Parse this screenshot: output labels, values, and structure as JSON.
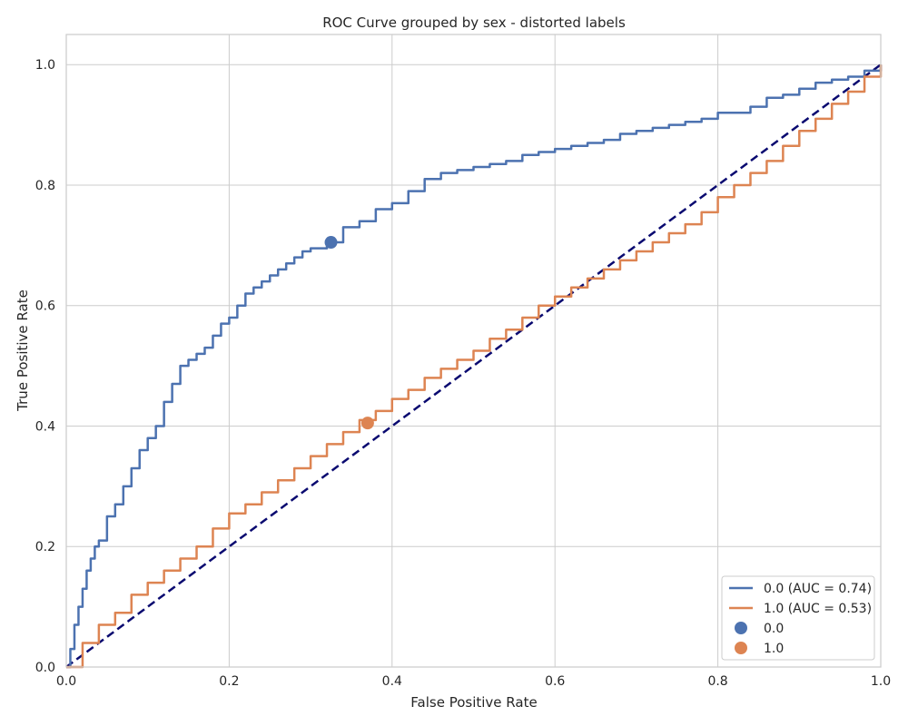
{
  "chart_data": {
    "type": "line",
    "title": "ROC Curve grouped by sex - distorted labels",
    "xlabel": "False Positive Rate",
    "ylabel": "True Positive Rate",
    "xlim": [
      0.0,
      1.0
    ],
    "ylim": [
      0.0,
      1.05
    ],
    "x_ticks": [
      0.0,
      0.2,
      0.4,
      0.6,
      0.8,
      1.0
    ],
    "y_ticks": [
      0.0,
      0.2,
      0.4,
      0.6,
      0.8,
      1.0
    ],
    "x_tick_labels": [
      "0.0",
      "0.2",
      "0.4",
      "0.6",
      "0.8",
      "1.0"
    ],
    "y_tick_labels": [
      "0.0",
      "0.2",
      "0.4",
      "0.6",
      "0.8",
      "1.0"
    ],
    "grid": true,
    "legend_position": "bottom-right",
    "series": [
      {
        "name": "0.0 (AUC = 0.74)",
        "color": "#4c72b0",
        "x": [
          0.0,
          0.005,
          0.01,
          0.015,
          0.02,
          0.025,
          0.03,
          0.035,
          0.04,
          0.05,
          0.06,
          0.07,
          0.08,
          0.09,
          0.1,
          0.11,
          0.12,
          0.13,
          0.14,
          0.15,
          0.16,
          0.17,
          0.18,
          0.19,
          0.2,
          0.21,
          0.22,
          0.23,
          0.24,
          0.25,
          0.26,
          0.27,
          0.28,
          0.29,
          0.3,
          0.32,
          0.34,
          0.36,
          0.38,
          0.4,
          0.42,
          0.44,
          0.46,
          0.48,
          0.5,
          0.52,
          0.54,
          0.56,
          0.58,
          0.6,
          0.62,
          0.64,
          0.66,
          0.68,
          0.7,
          0.72,
          0.74,
          0.76,
          0.78,
          0.8,
          0.82,
          0.84,
          0.86,
          0.88,
          0.9,
          0.92,
          0.94,
          0.96,
          0.98,
          1.0
        ],
        "y": [
          0.0,
          0.03,
          0.07,
          0.1,
          0.13,
          0.16,
          0.18,
          0.2,
          0.21,
          0.25,
          0.27,
          0.3,
          0.33,
          0.36,
          0.38,
          0.4,
          0.44,
          0.47,
          0.5,
          0.51,
          0.52,
          0.53,
          0.55,
          0.57,
          0.58,
          0.6,
          0.62,
          0.63,
          0.64,
          0.65,
          0.66,
          0.67,
          0.68,
          0.69,
          0.695,
          0.705,
          0.73,
          0.74,
          0.76,
          0.77,
          0.79,
          0.81,
          0.82,
          0.825,
          0.83,
          0.835,
          0.84,
          0.85,
          0.855,
          0.86,
          0.865,
          0.87,
          0.875,
          0.885,
          0.89,
          0.895,
          0.9,
          0.905,
          0.91,
          0.92,
          0.92,
          0.93,
          0.945,
          0.95,
          0.96,
          0.97,
          0.975,
          0.98,
          0.99,
          1.0
        ]
      },
      {
        "name": "1.0 (AUC = 0.53)",
        "color": "#dd8452",
        "x": [
          0.0,
          0.02,
          0.04,
          0.06,
          0.08,
          0.1,
          0.12,
          0.14,
          0.16,
          0.18,
          0.2,
          0.22,
          0.24,
          0.26,
          0.28,
          0.3,
          0.32,
          0.34,
          0.36,
          0.38,
          0.4,
          0.42,
          0.44,
          0.46,
          0.48,
          0.5,
          0.52,
          0.54,
          0.56,
          0.58,
          0.6,
          0.62,
          0.64,
          0.66,
          0.68,
          0.7,
          0.72,
          0.74,
          0.76,
          0.78,
          0.8,
          0.82,
          0.84,
          0.86,
          0.88,
          0.9,
          0.92,
          0.94,
          0.96,
          0.98,
          1.0
        ],
        "y": [
          0.0,
          0.04,
          0.07,
          0.09,
          0.12,
          0.14,
          0.16,
          0.18,
          0.2,
          0.23,
          0.255,
          0.27,
          0.29,
          0.31,
          0.33,
          0.35,
          0.37,
          0.39,
          0.41,
          0.425,
          0.445,
          0.46,
          0.48,
          0.495,
          0.51,
          0.525,
          0.545,
          0.56,
          0.58,
          0.6,
          0.615,
          0.63,
          0.645,
          0.66,
          0.675,
          0.69,
          0.705,
          0.72,
          0.735,
          0.755,
          0.78,
          0.8,
          0.82,
          0.84,
          0.865,
          0.89,
          0.91,
          0.935,
          0.955,
          0.98,
          1.0
        ]
      }
    ],
    "diagonal": {
      "x": [
        0.0,
        1.0
      ],
      "y": [
        0.0,
        1.0
      ],
      "color": "#0a0a70",
      "style": "dashed"
    },
    "points": [
      {
        "name": "0.0",
        "x": 0.325,
        "y": 0.705,
        "color": "#4c72b0"
      },
      {
        "name": "1.0",
        "x": 0.37,
        "y": 0.405,
        "color": "#dd8452"
      }
    ]
  }
}
